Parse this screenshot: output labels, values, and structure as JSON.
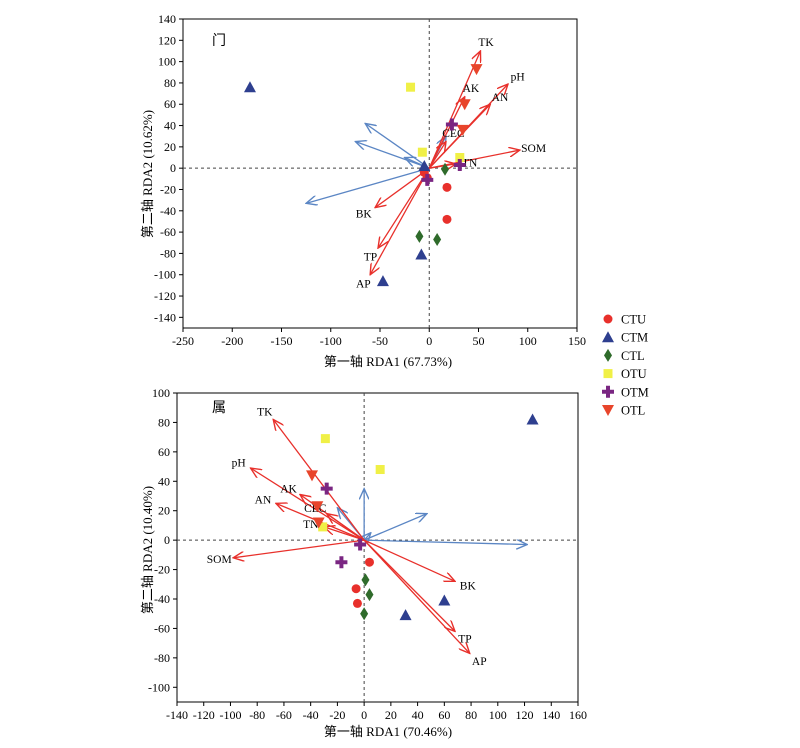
{
  "chart_data": [
    {
      "type": "scatter",
      "panel_label": "门",
      "xlabel": "第一轴 RDA1 (67.73%)",
      "ylabel": "第二轴 RDA2 (10.62%)",
      "xlim": [
        -250,
        150
      ],
      "ylim": [
        -150,
        140
      ],
      "xticks": [
        -250,
        -200,
        -150,
        -100,
        -50,
        0,
        50,
        100,
        150
      ],
      "yticks": [
        -140,
        -120,
        -100,
        -80,
        -60,
        -40,
        -20,
        0,
        20,
        40,
        60,
        80,
        100,
        120,
        140
      ],
      "env_vectors": [
        {
          "name": "TK",
          "x": 52,
          "y": 110
        },
        {
          "name": "pH",
          "x": 80,
          "y": 79
        },
        {
          "name": "AK",
          "x": 36,
          "y": 67
        },
        {
          "name": "AN",
          "x": 62,
          "y": 60
        },
        {
          "name": "CEC",
          "x": 17,
          "y": 25
        },
        {
          "name": "SOM",
          "x": 92,
          "y": 17
        },
        {
          "name": "TN",
          "x": 27,
          "y": 4
        },
        {
          "name": "BK",
          "x": -55,
          "y": -37
        },
        {
          "name": "TP",
          "x": -52,
          "y": -75
        },
        {
          "name": "AP",
          "x": -60,
          "y": -100
        }
      ],
      "species_vectors": [
        {
          "x": -65,
          "y": 42
        },
        {
          "x": -75,
          "y": 25
        },
        {
          "x": -125,
          "y": -33
        },
        {
          "x": 17,
          "y": 30
        },
        {
          "x": -25,
          "y": 10
        }
      ],
      "series": [
        {
          "name": "CTU",
          "points": [
            [
              -5,
              -4
            ],
            [
              -2,
              -9
            ],
            [
              18,
              -18
            ],
            [
              18,
              -48
            ]
          ]
        },
        {
          "name": "CTM",
          "points": [
            [
              -182,
              76
            ],
            [
              -47,
              -106
            ],
            [
              -8,
              -81
            ],
            [
              -5,
              2
            ]
          ]
        },
        {
          "name": "CTL",
          "points": [
            [
              -10,
              -64
            ],
            [
              8,
              -67
            ],
            [
              16,
              -1
            ]
          ]
        },
        {
          "name": "OTU",
          "points": [
            [
              -19,
              76
            ],
            [
              -7,
              15
            ],
            [
              31,
              10
            ]
          ]
        },
        {
          "name": "OTM",
          "points": [
            [
              23,
              41
            ],
            [
              -2,
              -11
            ],
            [
              31,
              3
            ]
          ]
        },
        {
          "name": "OTL",
          "points": [
            [
              36,
              60
            ],
            [
              34,
              36
            ],
            [
              48,
              93
            ]
          ]
        }
      ]
    },
    {
      "type": "scatter",
      "panel_label": "属",
      "xlabel": "第一轴 RDA1 (70.46%)",
      "ylabel": "第二轴 RDA2 (10.40%)",
      "xlim": [
        -140,
        160
      ],
      "ylim": [
        -110,
        100
      ],
      "xticks": [
        -140,
        -120,
        -100,
        -80,
        -60,
        -40,
        -20,
        0,
        20,
        40,
        60,
        80,
        100,
        120,
        140,
        160
      ],
      "yticks": [
        -100,
        -80,
        -60,
        -40,
        -20,
        0,
        20,
        40,
        60,
        80,
        100
      ],
      "env_vectors": [
        {
          "name": "TK",
          "x": -68,
          "y": 82
        },
        {
          "name": "pH",
          "x": -85,
          "y": 49
        },
        {
          "name": "AK",
          "x": -48,
          "y": 31
        },
        {
          "name": "AN",
          "x": -66,
          "y": 25
        },
        {
          "name": "CEC",
          "x": -28,
          "y": 18
        },
        {
          "name": "TN",
          "x": -30,
          "y": 9
        },
        {
          "name": "SOM",
          "x": -98,
          "y": -12
        },
        {
          "name": "BK",
          "x": 68,
          "y": -28
        },
        {
          "name": "TP",
          "x": 68,
          "y": -62
        },
        {
          "name": "AP",
          "x": 79,
          "y": -77
        }
      ],
      "species_vectors": [
        {
          "x": 0,
          "y": 35
        },
        {
          "x": 47,
          "y": 18
        },
        {
          "x": 122,
          "y": -3
        },
        {
          "x": -20,
          "y": 22
        },
        {
          "x": 5,
          "y": 5
        }
      ],
      "series": [
        {
          "name": "CTU",
          "points": [
            [
              4,
              -15
            ],
            [
              -6,
              -33
            ],
            [
              -5,
              -43
            ]
          ]
        },
        {
          "name": "CTM",
          "points": [
            [
              126,
              82
            ],
            [
              60,
              -41
            ],
            [
              31,
              -51
            ]
          ]
        },
        {
          "name": "CTL",
          "points": [
            [
              1,
              -27
            ],
            [
              4,
              -37
            ],
            [
              0,
              -50
            ]
          ]
        },
        {
          "name": "OTU",
          "points": [
            [
              -29,
              69
            ],
            [
              12,
              48
            ],
            [
              -31,
              9
            ]
          ]
        },
        {
          "name": "OTM",
          "points": [
            [
              -28,
              35
            ],
            [
              -17,
              -15
            ],
            [
              -3,
              -3
            ]
          ]
        },
        {
          "name": "OTL",
          "points": [
            [
              -39,
              44
            ],
            [
              -35,
              23
            ],
            [
              -34,
              12
            ]
          ]
        }
      ]
    }
  ],
  "legend": [
    {
      "name": "CTU",
      "marker": "circle",
      "color": "#E8302B"
    },
    {
      "name": "CTM",
      "marker": "triangle-up",
      "color": "#2E3F8F"
    },
    {
      "name": "CTL",
      "marker": "diamond",
      "color": "#2F6B2B"
    },
    {
      "name": "OTU",
      "marker": "square",
      "color": "#F0F046"
    },
    {
      "name": "OTM",
      "marker": "plus",
      "color": "#7A2682"
    },
    {
      "name": "OTL",
      "marker": "triangle-down",
      "color": "#E8452B"
    }
  ],
  "colors": {
    "env_arrow": "#E8302B",
    "species_arrow": "#5B86C4"
  }
}
